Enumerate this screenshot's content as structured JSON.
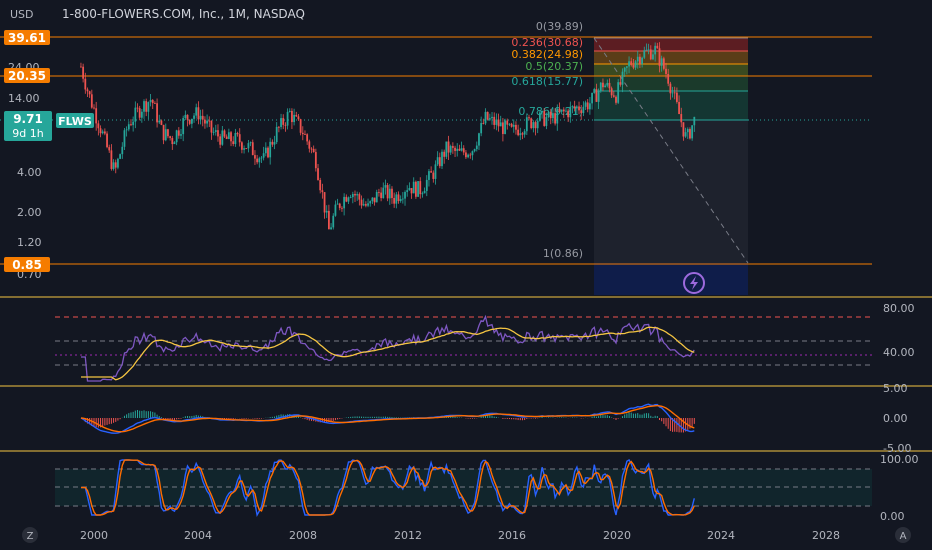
{
  "header": {
    "currency": "USD",
    "title": "1-800-FLOWERS.COM, Inc., 1M, NASDAQ"
  },
  "price_axis": {
    "ticks": [
      "24.00",
      "14.00",
      "4.00",
      "2.00",
      "1.20",
      "0.70"
    ],
    "badges": [
      {
        "value": "39.61",
        "color": "#f57c00"
      },
      {
        "value": "20.35",
        "color": "#f57c00"
      },
      {
        "value": "0.85",
        "color": "#f57c00"
      }
    ],
    "current": {
      "value": "9.71",
      "countdown": "9d 1h",
      "symbol": "FLWS",
      "color": "#26a69a"
    }
  },
  "time_axis": {
    "labels": [
      "2000",
      "2004",
      "2008",
      "2012",
      "2016",
      "2020",
      "2024",
      "2028"
    ]
  },
  "colors": {
    "up": "#26a69a",
    "down": "#ef5350",
    "level": "#f57c00",
    "rsi": "#7e57c2",
    "rsi_ma": "#f5c542",
    "macd": "#2962ff",
    "signal": "#ff6d00",
    "stoch_k": "#2962ff",
    "stoch_d": "#ff6d00"
  },
  "fib_labels": [
    {
      "text": "0(39.89)",
      "ratio": 0,
      "price": 39.89,
      "color": "#787b86"
    },
    {
      "text": "0.236(30.68)",
      "ratio": 0.236,
      "price": 30.68,
      "color": "#ef5350"
    },
    {
      "text": "0.382(24.98)",
      "ratio": 0.382,
      "price": 24.98,
      "color": "#ff9800"
    },
    {
      "text": "0.5(20.37)",
      "ratio": 0.5,
      "price": 20.37,
      "color": "#4caf50"
    },
    {
      "text": "0.618(15.77)",
      "ratio": 0.618,
      "price": 15.77,
      "color": "#26a69a"
    },
    {
      "text": "0.786(9.21)",
      "ratio": 0.786,
      "price": 9.21,
      "color": "#26a69a"
    },
    {
      "text": "1(0.86)",
      "ratio": 1,
      "price": 0.86,
      "color": "#787b86"
    }
  ],
  "rsi_axis": {
    "ticks": [
      "80.00",
      "40.00"
    ]
  },
  "macd_axis": {
    "ticks": [
      "5.00",
      "0.00",
      "-5.00"
    ]
  },
  "stoch_axis": {
    "ticks": [
      "100.00",
      "0.00"
    ]
  },
  "footer": {
    "left_icon": "Z",
    "right_icon": "A"
  },
  "chart_data": {
    "type": "candlestick",
    "title": "1-800-FLOWERS.COM, Inc., 1M, NASDAQ",
    "y_scale": "log",
    "x_range": [
      1999,
      2030
    ],
    "y_range": [
      0.6,
      45
    ],
    "price_series": [
      {
        "x": 1999.5,
        "y": 24
      },
      {
        "x": 1999.8,
        "y": 15
      },
      {
        "x": 2000.3,
        "y": 8
      },
      {
        "x": 2000.8,
        "y": 4
      },
      {
        "x": 2001.3,
        "y": 9
      },
      {
        "x": 2001.8,
        "y": 12
      },
      {
        "x": 2002.2,
        "y": 14
      },
      {
        "x": 2002.6,
        "y": 8
      },
      {
        "x": 2003.0,
        "y": 7
      },
      {
        "x": 2003.5,
        "y": 10
      },
      {
        "x": 2004.0,
        "y": 11
      },
      {
        "x": 2004.5,
        "y": 8
      },
      {
        "x": 2005.0,
        "y": 7
      },
      {
        "x": 2005.5,
        "y": 7
      },
      {
        "x": 2006.0,
        "y": 6
      },
      {
        "x": 2006.5,
        "y": 5
      },
      {
        "x": 2007.0,
        "y": 8
      },
      {
        "x": 2007.5,
        "y": 11
      },
      {
        "x": 2008.0,
        "y": 8
      },
      {
        "x": 2008.5,
        "y": 5
      },
      {
        "x": 2009.0,
        "y": 1.5
      },
      {
        "x": 2009.3,
        "y": 2.2
      },
      {
        "x": 2009.8,
        "y": 3
      },
      {
        "x": 2010.5,
        "y": 2.2
      },
      {
        "x": 2011.0,
        "y": 3
      },
      {
        "x": 2011.5,
        "y": 2.6
      },
      {
        "x": 2012.0,
        "y": 3.2
      },
      {
        "x": 2012.5,
        "y": 3
      },
      {
        "x": 2013.0,
        "y": 4
      },
      {
        "x": 2013.5,
        "y": 6
      },
      {
        "x": 2014.0,
        "y": 5.5
      },
      {
        "x": 2014.5,
        "y": 6
      },
      {
        "x": 2015.0,
        "y": 10
      },
      {
        "x": 2015.5,
        "y": 9
      },
      {
        "x": 2016.0,
        "y": 8
      },
      {
        "x": 2016.5,
        "y": 9
      },
      {
        "x": 2017.0,
        "y": 10
      },
      {
        "x": 2017.5,
        "y": 10
      },
      {
        "x": 2018.0,
        "y": 11
      },
      {
        "x": 2018.5,
        "y": 12
      },
      {
        "x": 2019.0,
        "y": 13
      },
      {
        "x": 2019.5,
        "y": 18
      },
      {
        "x": 2020.0,
        "y": 15
      },
      {
        "x": 2020.5,
        "y": 25
      },
      {
        "x": 2021.0,
        "y": 30
      },
      {
        "x": 2021.5,
        "y": 32
      },
      {
        "x": 2022.0,
        "y": 20
      },
      {
        "x": 2022.4,
        "y": 11
      },
      {
        "x": 2022.7,
        "y": 7
      },
      {
        "x": 2023.0,
        "y": 9.71
      }
    ],
    "horizontal_levels": [
      39.61,
      20.35,
      0.85
    ],
    "current_price": 9.71
  }
}
